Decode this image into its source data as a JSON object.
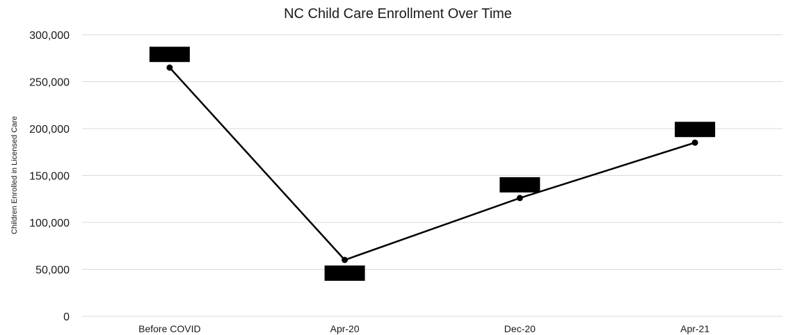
{
  "chart_data": {
    "type": "line",
    "title": "NC Child Care Enrollment Over Time",
    "xlabel": "",
    "ylabel": "Children Enrolled in Licensed Care",
    "categories": [
      "Before COVID",
      "Apr-20",
      "Dec-20",
      "Apr-21"
    ],
    "series": [
      {
        "values": [
          265000,
          60000,
          126000,
          185000
        ]
      }
    ],
    "ylim": [
      0,
      300000
    ],
    "yticks": [
      0,
      50000,
      100000,
      150000,
      200000,
      250000,
      300000
    ],
    "ytick_labels": [
      "0",
      "50,000",
      "100,000",
      "150,000",
      "200,000",
      "250,000",
      "300,000"
    ],
    "grid": true,
    "data_labels": "redacted (black boxes)",
    "colors": {
      "line": "#000000",
      "grid": "#d9d9d9",
      "label_box": "#000000"
    }
  }
}
